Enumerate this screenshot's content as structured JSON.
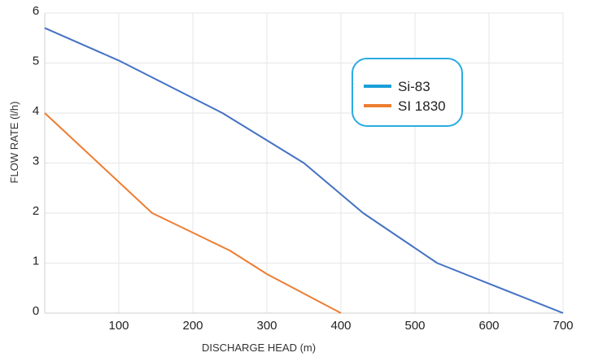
{
  "chart_data": {
    "type": "line",
    "xlabel": "DISCHARGE HEAD  (m)",
    "ylabel": "FLOW RATE (l/h)",
    "xlim": [
      0,
      700
    ],
    "ylim": [
      0,
      6
    ],
    "x_ticks": [
      "100",
      "200",
      "300",
      "400",
      "500",
      "600",
      "700"
    ],
    "x_tick_values": [
      100,
      200,
      300,
      400,
      500,
      600,
      700
    ],
    "y_ticks": [
      "0",
      "1",
      "2",
      "3",
      "4",
      "5",
      "6"
    ],
    "y_tick_values": [
      0,
      1,
      2,
      3,
      4,
      5,
      6
    ],
    "grid": true,
    "legend_position": "top-right",
    "series": [
      {
        "name": "Si-83",
        "color": "#4472c4",
        "legend_color": "#1a9fd9",
        "x": [
          0,
          100,
          240,
          350,
          430,
          530,
          700
        ],
        "y": [
          5.7,
          5.05,
          4.0,
          3.0,
          2.0,
          1.0,
          0.0
        ]
      },
      {
        "name": "SI 1830",
        "color": "#ed7d31",
        "legend_color": "#ed7d31",
        "x": [
          0,
          145,
          250,
          300,
          400
        ],
        "y": [
          4.0,
          2.0,
          1.25,
          0.78,
          0.0
        ]
      }
    ],
    "legend_border_color": "#29abe2"
  }
}
